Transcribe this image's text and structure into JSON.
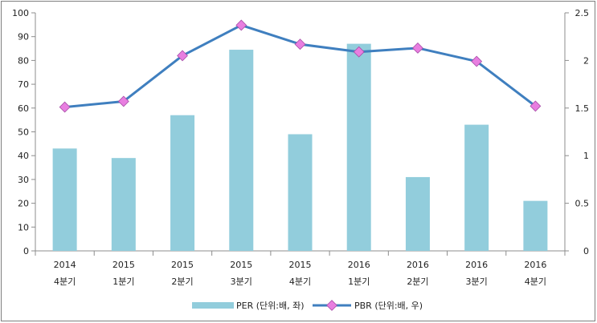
{
  "chart_data": {
    "type": "bar+line",
    "categories": [
      [
        "2014",
        "4분기"
      ],
      [
        "2015",
        "1분기"
      ],
      [
        "2015",
        "2분기"
      ],
      [
        "2015",
        "3분기"
      ],
      [
        "2015",
        "4분기"
      ],
      [
        "2016",
        "1분기"
      ],
      [
        "2016",
        "2분기"
      ],
      [
        "2016",
        "3분기"
      ],
      [
        "2016",
        "4분기"
      ]
    ],
    "series": [
      {
        "name": "PER (단위:배, 좌)",
        "type": "bar",
        "axis": "left",
        "color": "#92cddc",
        "values": [
          43,
          39,
          57,
          84.5,
          49,
          87,
          31,
          53,
          21
        ]
      },
      {
        "name": "PBR (단위:배, 우)",
        "type": "line",
        "axis": "right",
        "color": "#3f7fbf",
        "marker_color": "#e87ee0",
        "values": [
          1.51,
          1.57,
          2.05,
          2.37,
          2.17,
          2.09,
          2.13,
          1.99,
          1.52
        ]
      }
    ],
    "y_left": {
      "min": 0,
      "max": 100,
      "step": 10,
      "ticks": [
        "0",
        "10",
        "20",
        "30",
        "40",
        "50",
        "60",
        "70",
        "80",
        "90",
        "100"
      ]
    },
    "y_right": {
      "min": 0,
      "max": 2.5,
      "step": 0.5,
      "ticks": [
        "0",
        "0.5",
        "1",
        "1.5",
        "2",
        "2.5"
      ]
    },
    "grid": false,
    "legend_position": "bottom"
  }
}
